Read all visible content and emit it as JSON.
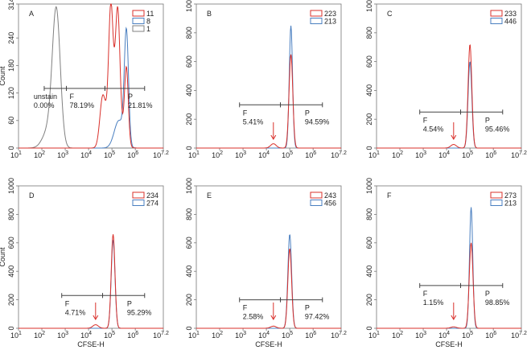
{
  "chart_data": [
    {
      "type": "line",
      "panel": "A",
      "ylabel": "Count",
      "xlabel": "",
      "ylim": [
        0,
        314
      ],
      "yticks": [
        "0",
        "60",
        "120",
        "180",
        "240",
        "314"
      ],
      "xlim_log": [
        1,
        7.2
      ],
      "series": [
        {
          "name": "11",
          "color": "#d9302b",
          "peaks": [
            [
              4.6,
              100,
              0.12
            ],
            [
              4.95,
              225,
              0.09
            ],
            [
              5.25,
              215,
              0.09
            ],
            [
              5.62,
              165,
              0.08
            ],
            [
              5.1,
              110,
              0.25
            ]
          ]
        },
        {
          "name": "8",
          "color": "#4a7fc0",
          "peaks": [
            [
              5.62,
              245,
              0.09
            ],
            [
              5.3,
              60,
              0.2
            ]
          ]
        },
        {
          "name": "1",
          "color": "#808080",
          "peaks": [
            [
              2.62,
              290,
              0.17
            ],
            [
              2.3,
              40,
              0.25
            ]
          ]
        }
      ],
      "gates": [
        {
          "label": "unstain",
          "value": "0.00%",
          "from": 2.1,
          "to": 3.05,
          "level": 130
        },
        {
          "label": "F",
          "value": "78.19%",
          "from": 3.05,
          "to": 4.7,
          "level": 130
        },
        {
          "label": "P",
          "value": "21.81%",
          "from": 4.7,
          "to": 6.4,
          "level": 130
        }
      ],
      "arrow": null
    },
    {
      "type": "line",
      "panel": "B",
      "ylabel": "",
      "xlabel": "",
      "ylim": [
        0,
        1000
      ],
      "yticks": [
        "0",
        "200",
        "400",
        "600",
        "800",
        "1000"
      ],
      "xlim_log": [
        1,
        7.2
      ],
      "series": [
        {
          "name": "223",
          "color": "#d9302b",
          "peaks": [
            [
              5.05,
              650,
              0.08
            ],
            [
              4.3,
              30,
              0.12
            ]
          ]
        },
        {
          "name": "213",
          "color": "#4a7fc0",
          "peaks": [
            [
              5.05,
              850,
              0.07
            ]
          ]
        }
      ],
      "gates": [
        {
          "label": "F",
          "value": "5.41%",
          "from": 2.85,
          "to": 4.6,
          "level": 300
        },
        {
          "label": "P",
          "value": "94.59%",
          "from": 4.6,
          "to": 6.4,
          "level": 300
        }
      ],
      "arrow": 4.3
    },
    {
      "type": "line",
      "panel": "C",
      "ylabel": "",
      "xlabel": "",
      "ylim": [
        0,
        1000
      ],
      "yticks": [
        "0",
        "200",
        "400",
        "600",
        "800",
        "1000"
      ],
      "xlim_log": [
        1,
        7.2
      ],
      "series": [
        {
          "name": "233",
          "color": "#d9302b",
          "peaks": [
            [
              5.0,
              720,
              0.08
            ],
            [
              4.3,
              25,
              0.12
            ]
          ]
        },
        {
          "name": "446",
          "color": "#4a7fc0",
          "peaks": [
            [
              5.0,
              600,
              0.08
            ]
          ]
        }
      ],
      "gates": [
        {
          "label": "F",
          "value": "4.54%",
          "from": 2.85,
          "to": 4.6,
          "level": 250
        },
        {
          "label": "P",
          "value": "95.46%",
          "from": 4.6,
          "to": 6.4,
          "level": 250
        }
      ],
      "arrow": 4.3
    },
    {
      "type": "line",
      "panel": "D",
      "ylabel": "Count",
      "xlabel": "CFSE-H",
      "ylim": [
        0,
        1000
      ],
      "yticks": [
        "0",
        "200",
        "400",
        "600",
        "800",
        "1000"
      ],
      "xlim_log": [
        1,
        7.2
      ],
      "series": [
        {
          "name": "234",
          "color": "#d9302b",
          "peaks": [
            [
              5.05,
              660,
              0.08
            ],
            [
              4.3,
              25,
              0.12
            ]
          ]
        },
        {
          "name": "274",
          "color": "#4a7fc0",
          "peaks": [
            [
              5.05,
              620,
              0.08
            ]
          ]
        }
      ],
      "gates": [
        {
          "label": "F",
          "value": "4.71%",
          "from": 2.85,
          "to": 4.6,
          "level": 230
        },
        {
          "label": "P",
          "value": "95.29%",
          "from": 4.6,
          "to": 6.4,
          "level": 230
        }
      ],
      "arrow": 4.3
    },
    {
      "type": "line",
      "panel": "E",
      "ylabel": "",
      "xlabel": "CFSE-H",
      "ylim": [
        0,
        1000
      ],
      "yticks": [
        "0",
        "200",
        "400",
        "600",
        "800",
        "1000"
      ],
      "xlim_log": [
        1,
        7.2
      ],
      "series": [
        {
          "name": "243",
          "color": "#d9302b",
          "peaks": [
            [
              5.0,
              560,
              0.08
            ],
            [
              4.3,
              15,
              0.12
            ]
          ]
        },
        {
          "name": "456",
          "color": "#4a7fc0",
          "peaks": [
            [
              5.0,
              660,
              0.08
            ]
          ]
        }
      ],
      "gates": [
        {
          "label": "F",
          "value": "2.58%",
          "from": 2.85,
          "to": 4.6,
          "level": 200
        },
        {
          "label": "P",
          "value": "97.42%",
          "from": 4.6,
          "to": 6.4,
          "level": 200
        }
      ],
      "arrow": 4.3
    },
    {
      "type": "line",
      "panel": "F",
      "ylabel": "",
      "xlabel": "CFSE-H",
      "ylim": [
        0,
        1000
      ],
      "yticks": [
        "0",
        "200",
        "400",
        "600",
        "800",
        "1000"
      ],
      "xlim_log": [
        1,
        7.2
      ],
      "series": [
        {
          "name": "273",
          "color": "#d9302b",
          "peaks": [
            [
              5.05,
              600,
              0.08
            ],
            [
              4.3,
              10,
              0.12
            ]
          ]
        },
        {
          "name": "213",
          "color": "#4a7fc0",
          "peaks": [
            [
              5.05,
              850,
              0.07
            ]
          ]
        }
      ],
      "gates": [
        {
          "label": "F",
          "value": "1.15%",
          "from": 2.85,
          "to": 4.6,
          "level": 300
        },
        {
          "label": "P",
          "value": "98.85%",
          "from": 4.6,
          "to": 6.4,
          "level": 300
        }
      ],
      "arrow": 4.3
    }
  ],
  "xtick_base": "10",
  "xtick_exps": [
    "1",
    "2",
    "3",
    "4",
    "5",
    "6",
    "7.2"
  ]
}
